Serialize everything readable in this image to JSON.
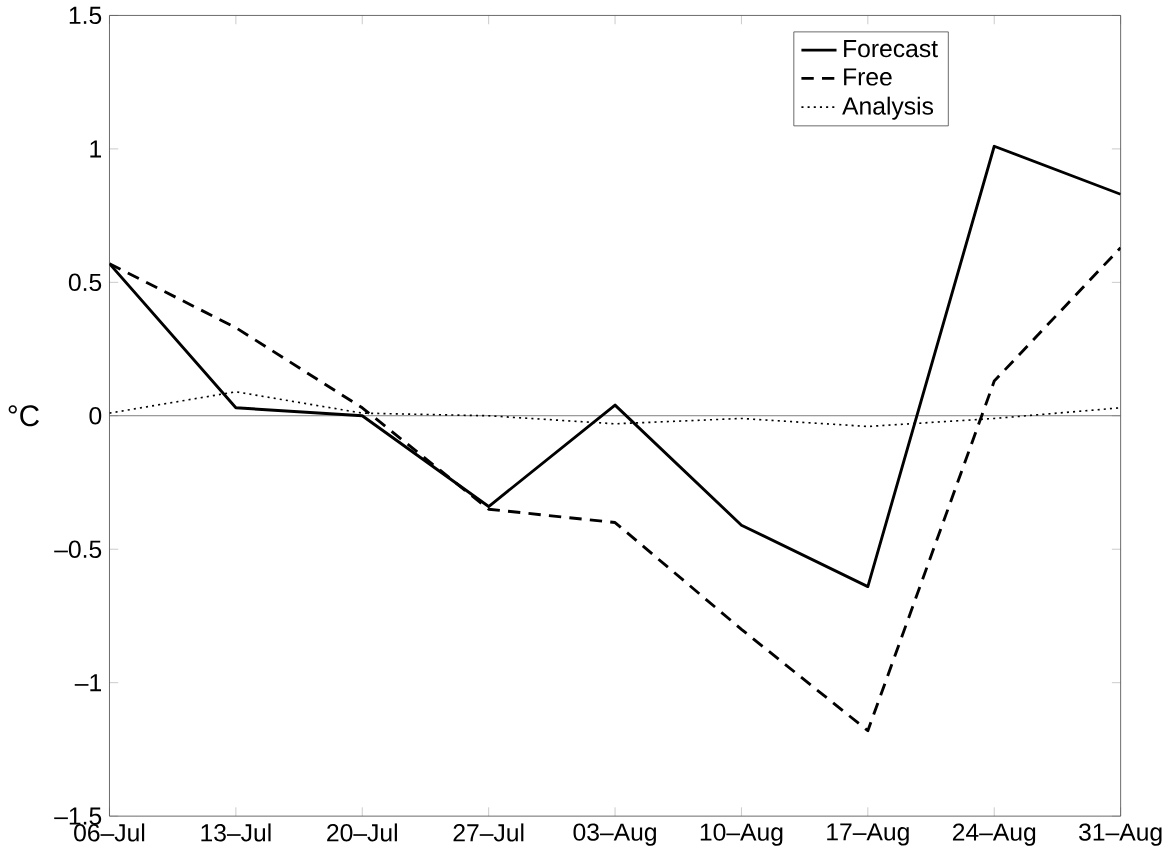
{
  "chart_data": {
    "type": "line",
    "ylabel": "°C",
    "categories": [
      "06–Jul",
      "13–Jul",
      "20–Jul",
      "27–Jul",
      "03–Aug",
      "10–Aug",
      "17–Aug",
      "24–Aug",
      "31–Aug"
    ],
    "series": [
      {
        "name": "Forecast",
        "color": "#000000",
        "line_style": "solid",
        "values": [
          0.57,
          0.03,
          0.0,
          -0.34,
          0.04,
          -0.41,
          -0.64,
          1.01,
          0.83
        ]
      },
      {
        "name": "Free",
        "color": "#000000",
        "line_style": "dashed",
        "values": [
          0.57,
          0.33,
          0.03,
          -0.35,
          -0.4,
          -0.8,
          -1.18,
          0.13,
          0.63
        ]
      },
      {
        "name": "Analysis",
        "color": "#000000",
        "line_style": "dotted",
        "values": [
          0.01,
          0.09,
          0.01,
          0.0,
          -0.03,
          -0.01,
          -0.04,
          -0.01,
          0.03
        ]
      }
    ],
    "ylim": [
      -1.5,
      1.5
    ],
    "yticks": [
      {
        "value": -1.5,
        "label": "–1.5"
      },
      {
        "value": -1,
        "label": "–1"
      },
      {
        "value": -0.5,
        "label": "–0.5"
      },
      0,
      0.5,
      1,
      1.5
    ],
    "ref_lines": [
      {
        "axis": "y",
        "value": 0,
        "color": "#555555"
      }
    ],
    "grid": false,
    "legend": "top right",
    "marker": "none"
  }
}
